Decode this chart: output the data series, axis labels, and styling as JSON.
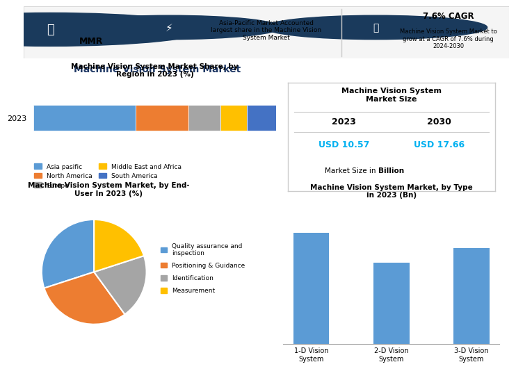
{
  "main_title": "Machine Vision System Market",
  "header_text1_bold": "7.6% CAGR",
  "header_text1_sub": "Machine Vision System Market to\ngrow at a CAGR of 7.6% during\n2024-2030",
  "header_text2": "Asia-Pacific Market Accounted\nlargest share in the Machine Vision\nSystem Market",
  "bar_title": "Machine Vision System Market Share, by\nRegion in 2023 (%)",
  "bar_year": "2023",
  "bar_segments": [
    {
      "label": "Asia pasific",
      "value": 0.42,
      "color": "#5b9bd5"
    },
    {
      "label": "North America",
      "value": 0.22,
      "color": "#ed7d31"
    },
    {
      "label": "Europe",
      "value": 0.13,
      "color": "#a5a5a5"
    },
    {
      "label": "Middle East and Africa",
      "value": 0.11,
      "color": "#ffc000"
    },
    {
      "label": "South America",
      "value": 0.12,
      "color": "#4472c4"
    }
  ],
  "market_size_title": "Machine Vision System\nMarket Size",
  "year_2023": "2023",
  "year_2030": "2030",
  "usd_2023": "USD 10.57",
  "usd_2030": "USD 17.66",
  "market_size_note1": "Market Size in ",
  "market_size_note2": "Billion",
  "pie_title": "Machine Vision System Market, by End-\nUser In 2023 (%)",
  "pie_segments": [
    {
      "label": "Quality assurance and\ninspection",
      "value": 30,
      "color": "#5b9bd5"
    },
    {
      "label": "Positioning & Guidance",
      "value": 30,
      "color": "#ed7d31"
    },
    {
      "label": "Identification",
      "value": 20,
      "color": "#a5a5a5"
    },
    {
      "label": "Measurement",
      "value": 20,
      "color": "#ffc000"
    }
  ],
  "bar_chart_title": "Machine Vision System Market, by Type\nin 2023 (Bn)",
  "bar_chart_categories": [
    "1-D Vision\nSystem",
    "2-D Vision\nSystem",
    "3-D Vision\nSystem"
  ],
  "bar_chart_values": [
    5.2,
    3.8,
    4.5
  ],
  "bar_chart_color": "#5b9bd5",
  "cyan_color": "#00b0f0",
  "dark_blue": "#1f3864",
  "icon_bg": "#1a3a5c",
  "border_color": "#cccccc"
}
